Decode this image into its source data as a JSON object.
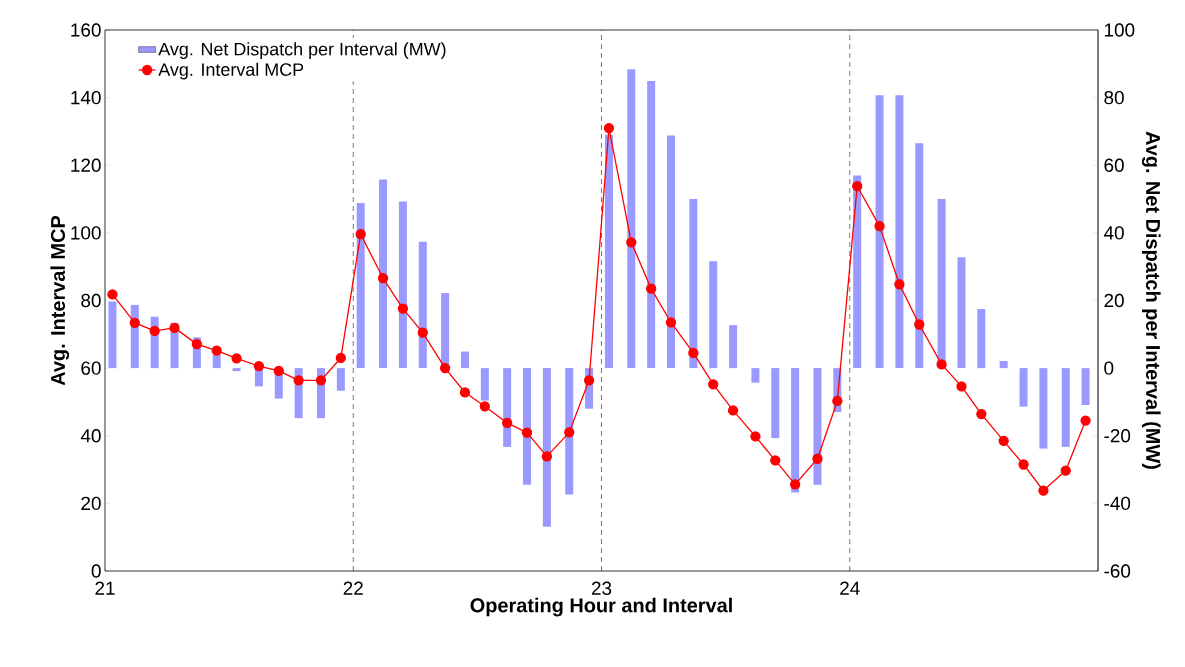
{
  "chart_data": {
    "type": "bar",
    "xlabel": "Operating Hour and Interval",
    "ylabel": "Avg. Interval MCP",
    "y2label": "Avg. Net Dispatch per Interval (MW)",
    "x": [
      21.03,
      21.12,
      21.2,
      21.28,
      21.37,
      21.45,
      21.53,
      21.62,
      21.7,
      21.78,
      21.87,
      21.95,
      22.03,
      22.12,
      22.2,
      22.28,
      22.37,
      22.45,
      22.53,
      22.62,
      22.7,
      22.78,
      22.87,
      22.95,
      23.03,
      23.12,
      23.2,
      23.28,
      23.37,
      23.45,
      23.53,
      23.62,
      23.7,
      23.78,
      23.87,
      23.95,
      24.03,
      24.12,
      24.2,
      24.28,
      24.37,
      24.45,
      24.53,
      24.62,
      24.7,
      24.78,
      24.87,
      24.95
    ],
    "xlim": [
      21,
      25
    ],
    "xticks": [
      21,
      22,
      23,
      24,
      {
        "value": 25,
        "label": null
      }
    ],
    "ylim": [
      0,
      160
    ],
    "yticks": [
      0,
      20,
      40,
      60,
      80,
      100,
      120,
      140,
      160
    ],
    "y2lim": [
      -60,
      100
    ],
    "y2ticks": [
      -60,
      -40,
      -20,
      0,
      20,
      40,
      60,
      80,
      100
    ],
    "series": [
      {
        "name": "Avg. Net Dispatch per Interval (MW)",
        "axis": "y2",
        "color": "#9999ff",
        "values": [
          19.7,
          18.7,
          15.2,
          13.4,
          9.1,
          3.9,
          -0.9,
          -5.4,
          -9.0,
          -14.8,
          -14.8,
          -6.7,
          48.8,
          55.8,
          49.3,
          37.4,
          22.2,
          4.9,
          -9.6,
          -23.3,
          -34.5,
          -46.9,
          -37.4,
          -12.0,
          69.0,
          88.4,
          84.9,
          68.8,
          50.0,
          31.6,
          12.7,
          -4.3,
          -20.7,
          -36.8,
          -34.5,
          -13.0,
          57.0,
          80.7,
          80.7,
          66.5,
          50.0,
          32.8,
          17.5,
          2.1,
          -11.4,
          -23.8,
          -23.3,
          -10.9
        ]
      },
      {
        "name": "Avg. Interval MCP",
        "type": "line",
        "color": "#ff0000",
        "values": [
          81.8,
          73.4,
          71.0,
          71.9,
          67.1,
          65.2,
          62.9,
          60.6,
          59.2,
          56.4,
          56.4,
          63.0,
          99.6,
          86.6,
          77.6,
          70.5,
          60.0,
          52.8,
          48.7,
          43.8,
          40.9,
          33.9,
          41.0,
          56.4,
          131.0,
          97.2,
          83.5,
          73.5,
          64.5,
          55.2,
          47.5,
          39.8,
          32.7,
          25.6,
          33.2,
          50.3,
          113.8,
          102.0,
          84.8,
          72.9,
          61.1,
          54.6,
          46.4,
          38.5,
          31.5,
          23.8,
          29.7,
          44.5
        ]
      }
    ],
    "ref_lines": [
      {
        "axis": "x",
        "value": 22,
        "color": "#404040",
        "line_style": "dashed"
      },
      {
        "axis": "x",
        "value": 23,
        "color": "#404040",
        "line_style": "dashed"
      },
      {
        "axis": "x",
        "value": 24,
        "color": "#404040",
        "line_style": "dashed"
      }
    ],
    "marker": "circle",
    "grid": false,
    "legend": "top left"
  }
}
